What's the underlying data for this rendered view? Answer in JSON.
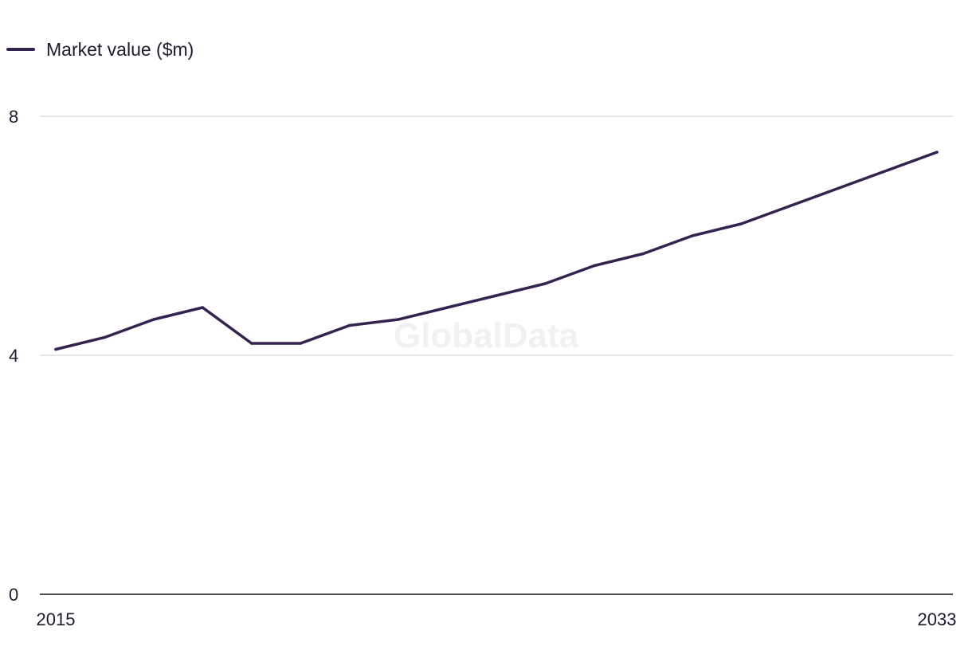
{
  "chart_data": {
    "type": "line",
    "x": [
      2015,
      2016,
      2017,
      2018,
      2019,
      2020,
      2021,
      2022,
      2023,
      2024,
      2025,
      2026,
      2027,
      2028,
      2029,
      2030,
      2031,
      2032,
      2033
    ],
    "series": [
      {
        "name": "Market value ($m)",
        "values": [
          4.1,
          4.3,
          4.6,
          4.8,
          4.2,
          4.2,
          4.5,
          4.6,
          4.8,
          5.0,
          5.2,
          5.5,
          5.7,
          6.0,
          6.2,
          6.5,
          6.8,
          7.1,
          7.4
        ]
      }
    ],
    "ylim": [
      0,
      8
    ],
    "y_ticks": [
      "0",
      "4",
      "8"
    ],
    "x_tick_labels": [
      "2015",
      "2033"
    ],
    "legend_position": "top-left",
    "grid": true,
    "watermark": "GlobalData",
    "colors": {
      "line": "#34234f",
      "grid": "#d9d9de",
      "axis": "#111111"
    }
  }
}
